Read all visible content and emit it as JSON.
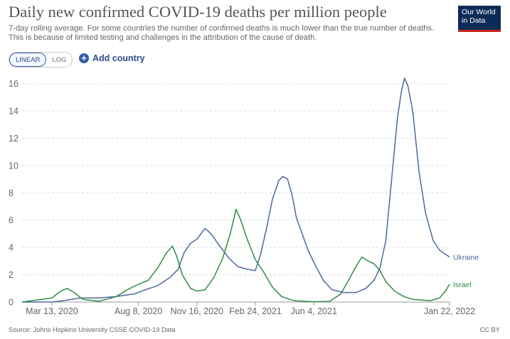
{
  "header": {
    "title": "Daily new confirmed COVID-19 deaths per million people",
    "subtitle_line1": "7-day rolling average. For some countries the number of confirmed deaths is much lower than the true number of deaths.",
    "subtitle_line2": "This is because of limited testing and challenges in the attribution of the cause of death.",
    "logo_line1": "Our World",
    "logo_line2": "in Data"
  },
  "controls": {
    "scale_linear": "LINEAR",
    "scale_log": "LOG",
    "active_scale": "linear",
    "add_country_label": "Add country",
    "add_icon": "plus-circle-icon"
  },
  "footer": {
    "source": "Source: Johns Hopkins University CSSE COVID-19 Data",
    "license": "CC BY"
  },
  "chart_data": {
    "type": "line",
    "title": "Daily new confirmed COVID-19 deaths per million people",
    "ylim": [
      0,
      16.5
    ],
    "y_ticks": [
      0,
      2,
      4,
      6,
      8,
      10,
      12,
      14,
      16
    ],
    "x_ticks": [
      {
        "date": "2020-03-13",
        "label": "Mar 13, 2020"
      },
      {
        "date": "2020-08-08",
        "label": "Aug 8, 2020"
      },
      {
        "date": "2020-11-16",
        "label": "Nov 16, 2020"
      },
      {
        "date": "2021-02-24",
        "label": "Feb 24, 2021"
      },
      {
        "date": "2021-06-04",
        "label": "Jun 4, 2021"
      },
      {
        "date": "2022-01-22",
        "label": "Jan 22, 2022"
      }
    ],
    "xlim": [
      "2020-01-22",
      "2022-01-22"
    ],
    "grid": "horizontal",
    "legend": "end-labels",
    "series": [
      {
        "name": "Ukraine",
        "color": "#4c6a9c",
        "points": [
          [
            "2020-01-22",
            0
          ],
          [
            "2020-03-13",
            0
          ],
          [
            "2020-04-01",
            0.1
          ],
          [
            "2020-05-01",
            0.3
          ],
          [
            "2020-06-01",
            0.3
          ],
          [
            "2020-07-01",
            0.4
          ],
          [
            "2020-08-01",
            0.6
          ],
          [
            "2020-08-20",
            0.9
          ],
          [
            "2020-09-10",
            1.2
          ],
          [
            "2020-10-01",
            1.8
          ],
          [
            "2020-10-15",
            2.4
          ],
          [
            "2020-10-25",
            3.6
          ],
          [
            "2020-11-05",
            4.3
          ],
          [
            "2020-11-16",
            4.6
          ],
          [
            "2020-11-30",
            5.4
          ],
          [
            "2020-12-10",
            5.0
          ],
          [
            "2020-12-25",
            4.1
          ],
          [
            "2021-01-10",
            3.2
          ],
          [
            "2021-01-25",
            2.6
          ],
          [
            "2021-02-10",
            2.4
          ],
          [
            "2021-02-24",
            2.3
          ],
          [
            "2021-03-05",
            3.5
          ],
          [
            "2021-03-15",
            5.4
          ],
          [
            "2021-03-25",
            7.5
          ],
          [
            "2021-04-05",
            8.9
          ],
          [
            "2021-04-12",
            9.2
          ],
          [
            "2021-04-20",
            9.0
          ],
          [
            "2021-04-28",
            7.8
          ],
          [
            "2021-05-05",
            6.2
          ],
          [
            "2021-05-15",
            5.0
          ],
          [
            "2021-05-25",
            3.8
          ],
          [
            "2021-06-04",
            2.9
          ],
          [
            "2021-06-20",
            1.6
          ],
          [
            "2021-07-05",
            0.9
          ],
          [
            "2021-07-25",
            0.7
          ],
          [
            "2021-08-15",
            0.7
          ],
          [
            "2021-09-01",
            1.0
          ],
          [
            "2021-09-15",
            1.6
          ],
          [
            "2021-09-25",
            2.5
          ],
          [
            "2021-10-05",
            4.5
          ],
          [
            "2021-10-15",
            9.0
          ],
          [
            "2021-10-25",
            13.5
          ],
          [
            "2021-11-01",
            15.5
          ],
          [
            "2021-11-06",
            16.4
          ],
          [
            "2021-11-12",
            15.8
          ],
          [
            "2021-11-20",
            14.0
          ],
          [
            "2021-12-01",
            9.5
          ],
          [
            "2021-12-12",
            6.5
          ],
          [
            "2021-12-25",
            4.5
          ],
          [
            "2022-01-05",
            3.8
          ],
          [
            "2022-01-15",
            3.5
          ],
          [
            "2022-01-22",
            3.3
          ]
        ]
      },
      {
        "name": "Israel",
        "color": "#2d8c47",
        "points": [
          [
            "2020-01-22",
            0
          ],
          [
            "2020-03-13",
            0.3
          ],
          [
            "2020-03-28",
            0.8
          ],
          [
            "2020-04-08",
            1.0
          ],
          [
            "2020-04-20",
            0.7
          ],
          [
            "2020-05-05",
            0.2
          ],
          [
            "2020-06-01",
            0.05
          ],
          [
            "2020-07-01",
            0.4
          ],
          [
            "2020-07-20",
            0.9
          ],
          [
            "2020-08-08",
            1.3
          ],
          [
            "2020-08-25",
            1.6
          ],
          [
            "2020-09-10",
            2.5
          ],
          [
            "2020-09-25",
            3.6
          ],
          [
            "2020-10-05",
            4.1
          ],
          [
            "2020-10-12",
            3.4
          ],
          [
            "2020-10-22",
            2.0
          ],
          [
            "2020-11-05",
            1.0
          ],
          [
            "2020-11-16",
            0.8
          ],
          [
            "2020-11-30",
            0.9
          ],
          [
            "2020-12-15",
            1.8
          ],
          [
            "2020-12-30",
            3.2
          ],
          [
            "2021-01-12",
            5.0
          ],
          [
            "2021-01-22",
            6.8
          ],
          [
            "2021-01-30",
            6.0
          ],
          [
            "2021-02-10",
            4.6
          ],
          [
            "2021-02-24",
            3.1
          ],
          [
            "2021-03-10",
            2.2
          ],
          [
            "2021-03-25",
            1.1
          ],
          [
            "2021-04-10",
            0.4
          ],
          [
            "2021-05-01",
            0.1
          ],
          [
            "2021-06-04",
            0.02
          ],
          [
            "2021-07-01",
            0.05
          ],
          [
            "2021-07-20",
            0.6
          ],
          [
            "2021-08-01",
            1.5
          ],
          [
            "2021-08-15",
            2.6
          ],
          [
            "2021-08-25",
            3.3
          ],
          [
            "2021-09-05",
            3.0
          ],
          [
            "2021-09-15",
            2.8
          ],
          [
            "2021-09-25",
            2.3
          ],
          [
            "2021-10-05",
            1.5
          ],
          [
            "2021-10-20",
            0.8
          ],
          [
            "2021-11-05",
            0.4
          ],
          [
            "2021-11-20",
            0.2
          ],
          [
            "2021-12-05",
            0.15
          ],
          [
            "2021-12-20",
            0.1
          ],
          [
            "2022-01-05",
            0.3
          ],
          [
            "2022-01-15",
            0.8
          ],
          [
            "2022-01-22",
            1.3
          ]
        ]
      }
    ]
  }
}
